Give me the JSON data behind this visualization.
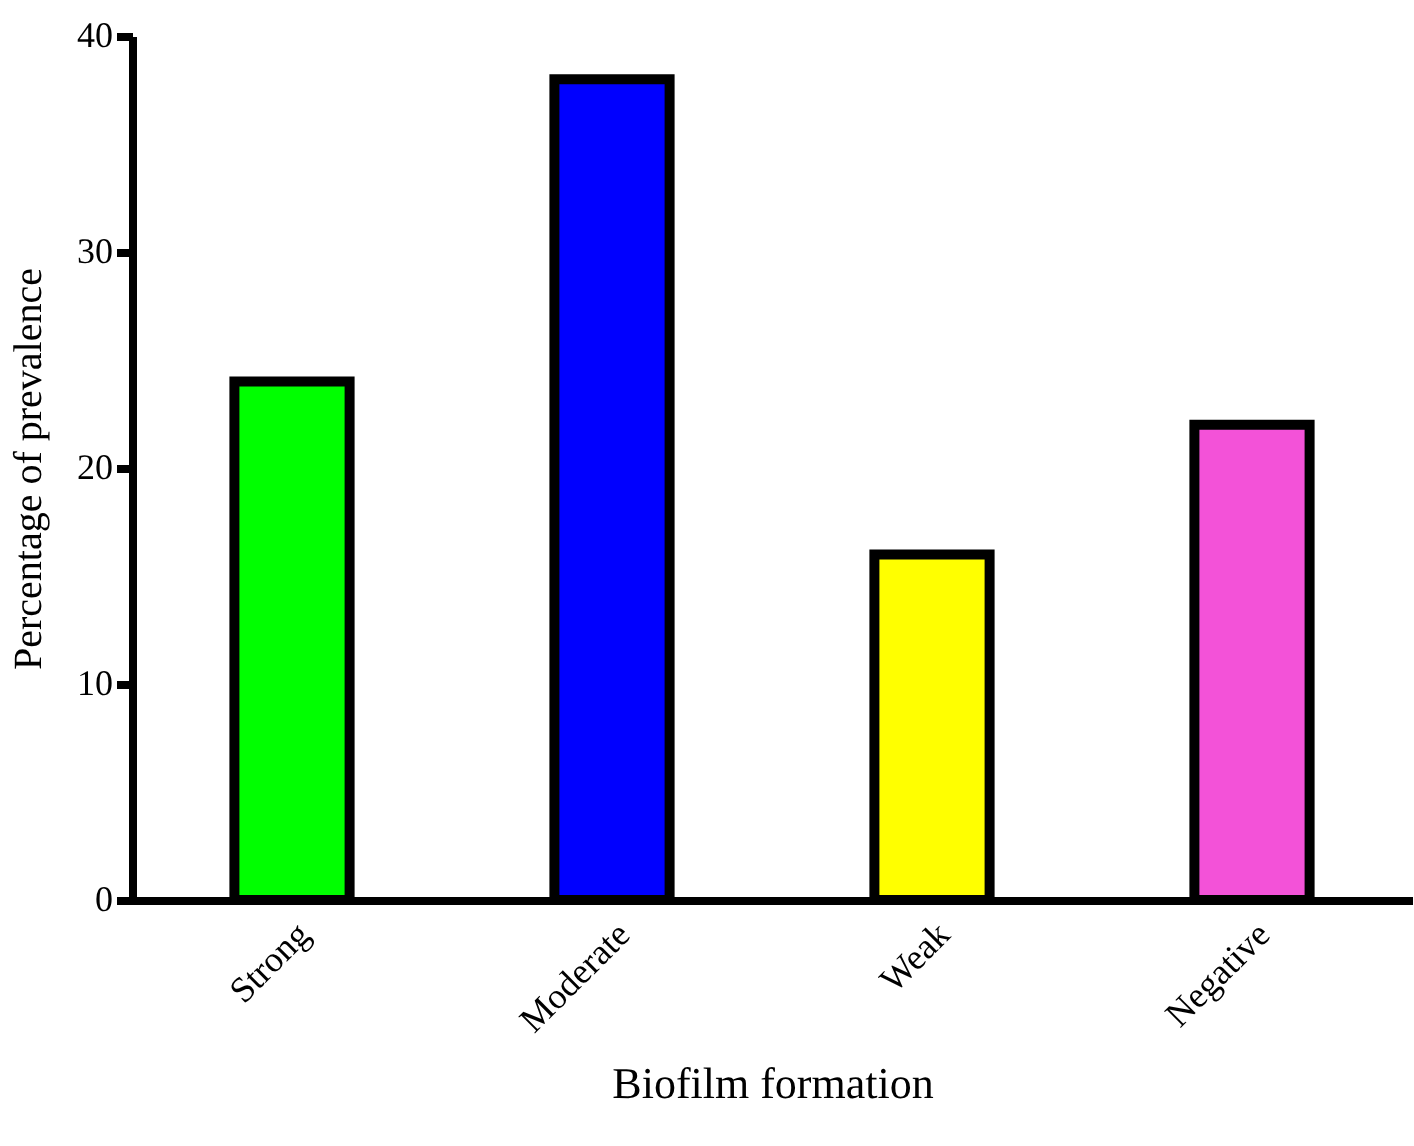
{
  "chart_data": {
    "type": "bar",
    "xlabel": "Biofilm formation",
    "ylabel": "Percentage of prevalence",
    "categories": [
      "Strong",
      "Moderate",
      "Weak",
      "Negative"
    ],
    "values": [
      24,
      38,
      16,
      22
    ],
    "colors": [
      "#00ff00",
      "#0000ff",
      "#ffff00",
      "#f352d8"
    ],
    "ylim": [
      0,
      40
    ],
    "yticks": [
      0,
      10,
      20,
      30,
      40
    ],
    "grid": false
  }
}
